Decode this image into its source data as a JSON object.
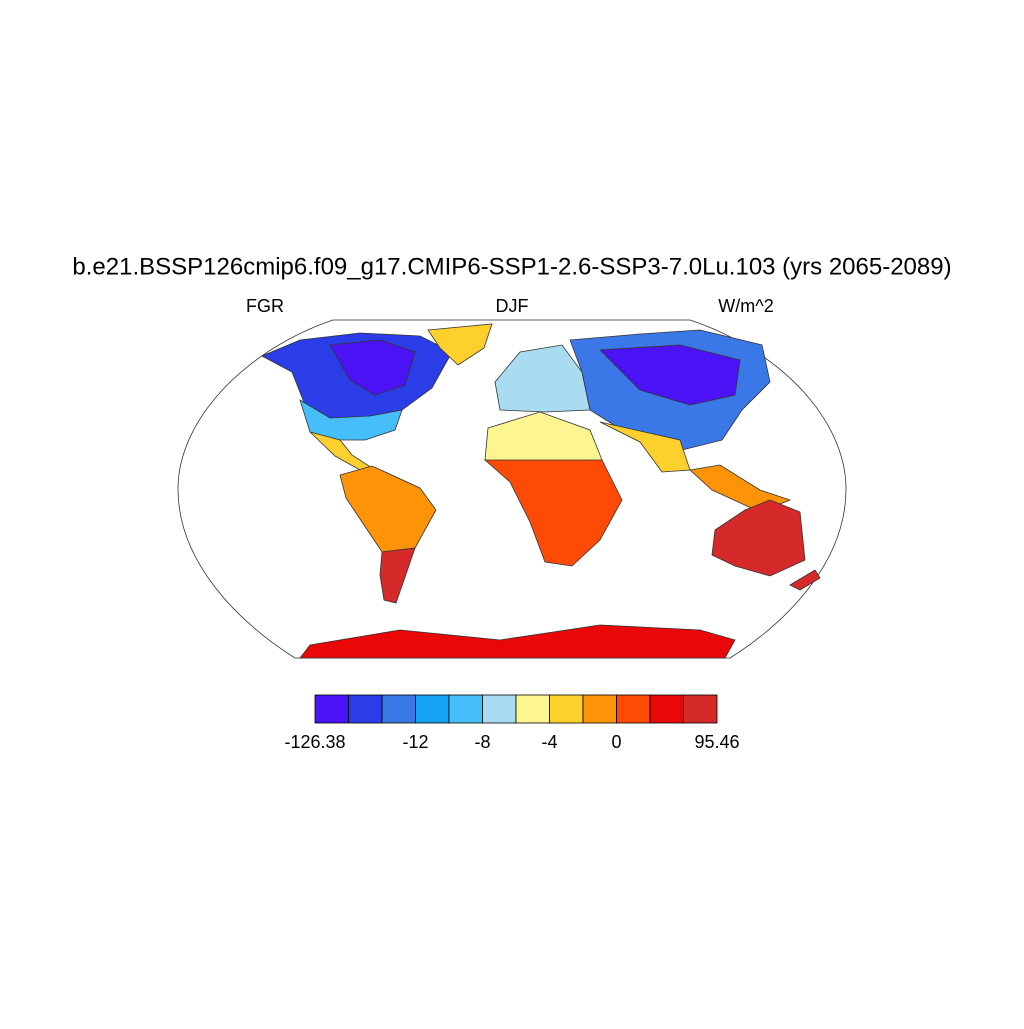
{
  "title": "b.e21.BSSP126cmip6.f09_g17.CMIP6-SSP1-2.6-SSP3-7.0Lu.103 (yrs 2065-2089)",
  "left_label": "FGR",
  "center_label": "DJF",
  "right_label": "W/m^2",
  "colorbar": {
    "colors": [
      "#4b12f5",
      "#2a3de6",
      "#3a78e8",
      "#16a3f5",
      "#45befa",
      "#a9dcf0",
      "#fdf590",
      "#fdd02e",
      "#fd9306",
      "#fd4a05",
      "#ea0707",
      "#d62a2a"
    ],
    "boundaries": [
      -126.38,
      null,
      null,
      -12,
      null,
      -8,
      null,
      -4,
      null,
      0,
      null,
      null,
      95.46
    ]
  }
}
